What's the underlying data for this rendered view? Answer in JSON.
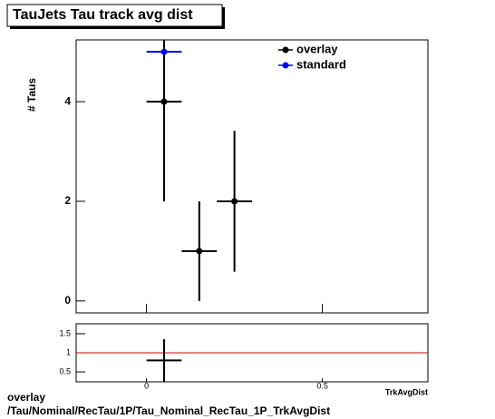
{
  "chart_data": [
    {
      "type": "errorbar",
      "title": "TauJets Tau track avg dist",
      "y_label": "# Taus",
      "xlim": [
        -0.2,
        0.8
      ],
      "ylim": [
        -0.24,
        5.24
      ],
      "xticks": [
        0,
        0.5
      ],
      "yticks": [
        0,
        2,
        4
      ],
      "legend": "upper right",
      "series": [
        {
          "name": "overlay",
          "color": "#000000",
          "x": [
            0.05,
            0.15,
            0.25
          ],
          "values": [
            4,
            1,
            2
          ],
          "xerr": [
            0.05,
            0.05,
            0.05
          ],
          "yerr": [
            2,
            1,
            1.414
          ]
        },
        {
          "name": "standard",
          "color": "#0000ff",
          "x": [
            0.05
          ],
          "values": [
            5
          ],
          "xerr": [
            0.05
          ],
          "yerr": [
            0
          ]
        }
      ]
    },
    {
      "type": "errorbar",
      "x_label": "TrkAvgDist",
      "xlim": [
        -0.2,
        0.8
      ],
      "ylim": [
        0.24,
        1.76
      ],
      "xticks": [
        0,
        0.5
      ],
      "yticks": [
        0.5,
        1,
        1.5
      ],
      "reference_line": 1,
      "reference_color": "#cc0000",
      "series": [
        {
          "color": "#000000",
          "x": [
            0.05
          ],
          "values": [
            0.8
          ],
          "xerr": [
            0.05
          ],
          "yerr": [
            0.56
          ]
        }
      ]
    }
  ],
  "footer": {
    "lines": [
      "overlay",
      "/Tau/Nominal/RecTau/1P/Tau_Nominal_RecTau_1P_TrkAvgDist"
    ]
  }
}
